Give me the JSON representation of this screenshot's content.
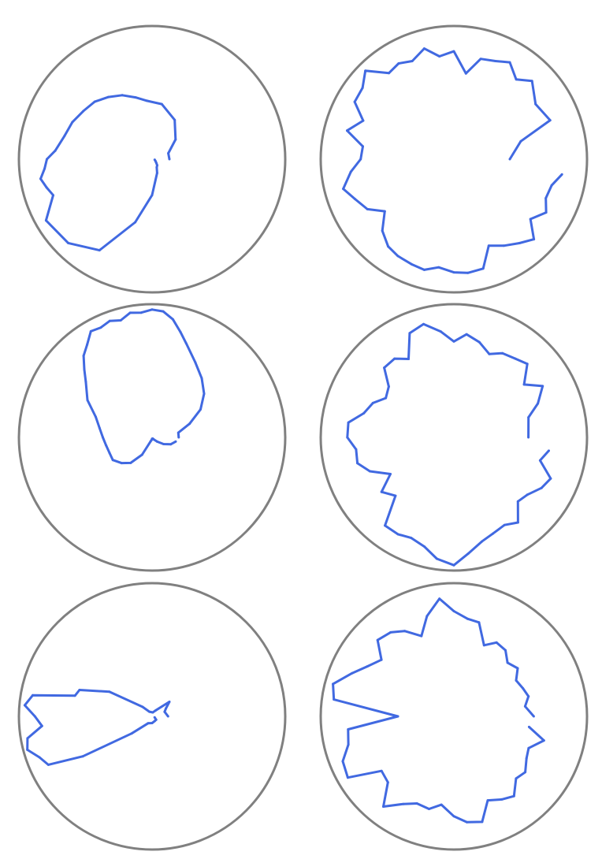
{
  "colors": {
    "background": "#ffffff",
    "frame": "#808080",
    "series": "#4169e1"
  },
  "chart_data": [
    {
      "type": "line",
      "coordinate_system": "polar",
      "angle_unit": "degrees",
      "r_range": [
        0,
        1
      ],
      "grid": false,
      "panel": "row-1-left",
      "series": [
        {
          "theta": [
            0,
            20,
            40,
            60,
            80,
            95,
            105,
            115,
            125,
            135,
            145,
            155,
            165,
            175,
            180,
            185,
            190,
            195,
            200,
            210,
            225,
            240,
            255,
            270,
            290,
            300,
            310,
            320,
            330,
            350
          ],
          "r": [
            0.13,
            0.13,
            0.23,
            0.34,
            0.42,
            0.44,
            0.48,
            0.53,
            0.57,
            0.61,
            0.63,
            0.66,
            0.68,
            0.73,
            0.79,
            0.81,
            0.85,
            0.82,
            0.79,
            0.92,
            0.89,
            0.79,
            0.49,
            0.27,
            0.11,
            0.07,
            0.06,
            0.04,
            0.03,
            0.02
          ]
        }
      ]
    },
    {
      "type": "line",
      "coordinate_system": "polar",
      "angle_unit": "degrees",
      "r_range": [
        0,
        1
      ],
      "grid": false,
      "panel": "row-1-right",
      "series": [
        {
          "theta": [
            0,
            15,
            22,
            34,
            45,
            52,
            60,
            67,
            75,
            82,
            90,
            98,
            105,
            113,
            120,
            127,
            135,
            142,
            150,
            157,
            165,
            172,
            180,
            187,
            195,
            202,
            210,
            217,
            225,
            233,
            240,
            248,
            255,
            262,
            270,
            277,
            285,
            292,
            300,
            308,
            315,
            322,
            330,
            337,
            345,
            352
          ],
          "r": [
            0.42,
            0.52,
            0.78,
            0.74,
            0.83,
            0.76,
            0.84,
            0.8,
            0.78,
            0.65,
            0.81,
            0.78,
            0.86,
            0.8,
            0.83,
            0.81,
            0.94,
            0.87,
            0.86,
            0.74,
            0.83,
            0.69,
            0.7,
            0.78,
            0.86,
            0.8,
            0.75,
            0.65,
            0.76,
            0.82,
            0.84,
            0.85,
            0.86,
            0.82,
            0.85,
            0.86,
            0.85,
            0.7,
            0.75,
            0.8,
            0.85,
            0.73,
            0.8,
            0.75,
            0.76,
            0.82
          ]
        }
      ]
    },
    {
      "type": "line",
      "coordinate_system": "polar",
      "angle_unit": "degrees",
      "r_range": [
        0,
        1
      ],
      "grid": false,
      "panel": "row-2-left",
      "series": [
        {
          "theta": [
            0,
            10,
            20,
            30,
            40,
            50,
            60,
            70,
            75,
            80,
            85,
            90,
            95,
            100,
            105,
            110,
            115,
            120,
            125,
            130,
            135,
            140,
            150,
            160,
            170,
            180,
            190,
            200,
            210,
            220,
            230,
            240,
            250,
            260,
            270,
            280,
            290,
            300,
            310,
            320,
            330,
            340,
            350
          ],
          "r": [
            0.2,
            0.2,
            0.3,
            0.42,
            0.51,
            0.58,
            0.65,
            0.75,
            0.82,
            0.9,
            0.95,
            0.96,
            0.94,
            0.95,
            0.91,
            0.93,
            0.91,
            0.92,
            0.85,
            0.8,
            0.72,
            0.65,
            0.56,
            0.45,
            0.4,
            0.37,
            0.35,
            0.34,
            0.34,
            0.3,
            0.25,
            0.15,
            0.03,
            0.02,
            0.01,
            0.01,
            0.01,
            0.01,
            0.02,
            0.05,
            0.1,
            0.15,
            0.18
          ]
        }
      ]
    },
    {
      "type": "line",
      "coordinate_system": "polar",
      "angle_unit": "degrees",
      "r_range": [
        0,
        1
      ],
      "grid": false,
      "panel": "row-2-right",
      "series": [
        {
          "theta": [
            0,
            15,
            22,
            30,
            37,
            45,
            52,
            60,
            67,
            75,
            83,
            90,
            97,
            105,
            113,
            120,
            127,
            135,
            142,
            150,
            157,
            165,
            172,
            180,
            187,
            195,
            202,
            210,
            217,
            225,
            232,
            240,
            247,
            255,
            262,
            270,
            277,
            285,
            292,
            300,
            307,
            315,
            322,
            330,
            337,
            345,
            352
          ],
          "r": [
            0.56,
            0.58,
            0.68,
            0.77,
            0.66,
            0.78,
            0.75,
            0.73,
            0.68,
            0.74,
            0.78,
            0.72,
            0.8,
            0.88,
            0.85,
            0.68,
            0.74,
            0.74,
            0.62,
            0.59,
            0.66,
            0.7,
            0.8,
            0.8,
            0.74,
            0.75,
            0.68,
            0.55,
            0.68,
            0.62,
            0.84,
            0.84,
            0.82,
            0.85,
            0.92,
            0.96,
            0.88,
            0.81,
            0.78,
            0.76,
            0.8,
            0.68,
            0.7,
            0.76,
            0.79,
            0.67,
            0.72
          ]
        }
      ]
    },
    {
      "type": "line",
      "coordinate_system": "polar",
      "angle_unit": "degrees",
      "r_range": [
        0,
        1
      ],
      "grid": false,
      "panel": "row-3-left",
      "series": [
        {
          "theta": [
            0,
            20,
            30,
            40,
            60,
            80,
            120,
            135,
            150,
            160,
            165,
            170,
            175,
            180,
            185,
            190,
            195,
            200,
            205,
            210,
            220,
            240,
            270,
            300,
            320,
            340
          ],
          "r": [
            0.12,
            0.1,
            0.12,
            0.17,
            0.05,
            0.03,
            0.04,
            0.1,
            0.37,
            0.58,
            0.6,
            0.91,
            0.96,
            0.88,
            0.83,
            0.95,
            0.97,
            0.9,
            0.86,
            0.6,
            0.2,
            0.06,
            0.05,
            0.04,
            0.04,
            0.02
          ]
        }
      ]
    },
    {
      "type": "line",
      "coordinate_system": "polar",
      "angle_unit": "degrees",
      "r_range": [
        0,
        1
      ],
      "grid": false,
      "panel": "row-3-right",
      "series": [
        {
          "theta": [
            0,
            8,
            15,
            22,
            30,
            37,
            45,
            52,
            60,
            67,
            75,
            82,
            90,
            97,
            105,
            112,
            120,
            127,
            135,
            142,
            150,
            157,
            165,
            172,
            180,
            187,
            195,
            202,
            210,
            217,
            225,
            232,
            240,
            247,
            255,
            262,
            270,
            277,
            285,
            292,
            300,
            307,
            315,
            322,
            330,
            337,
            345,
            352
          ],
          "r": [
            0.6,
            0.54,
            0.58,
            0.56,
            0.54,
            0.6,
            0.57,
            0.63,
            0.64,
            0.58,
            0.73,
            0.74,
            0.79,
            0.89,
            0.78,
            0.65,
            0.74,
            0.79,
            0.81,
            0.69,
            0.75,
            0.83,
            0.94,
            0.91,
            0.42,
            0.8,
            0.82,
            0.9,
            0.92,
            0.68,
            0.7,
            0.86,
            0.76,
            0.71,
            0.72,
            0.67,
            0.75,
            0.8,
            0.82,
            0.68,
            0.72,
            0.75,
            0.66,
            0.68,
            0.63,
            0.61,
            0.7,
            0.57
          ]
        }
      ]
    }
  ]
}
